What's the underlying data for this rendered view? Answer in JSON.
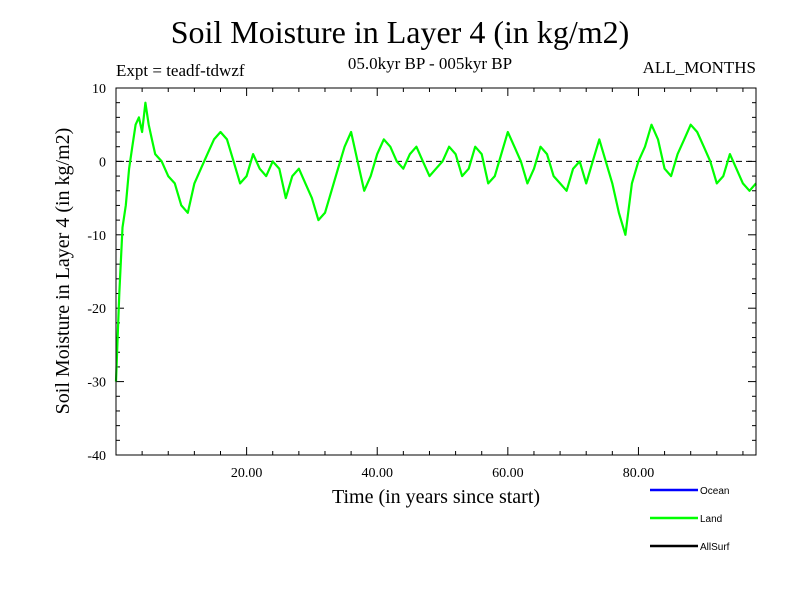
{
  "title": "Soil Moisture in Layer 4 (in kg/m2)",
  "subtitle": "05.0kyr BP - 005kyr BP",
  "experiment": "Expt = teadf-tdwzf",
  "period": "ALL_MONTHS",
  "chart_data": {
    "type": "line",
    "title": "Soil Moisture in Layer 4 (in kg/m2)",
    "xlabel": "Time (in years since start)",
    "ylabel": "Soil Moisture in Layer 4 (in kg/m2)",
    "xlim": [
      0,
      98
    ],
    "ylim": [
      -40,
      10
    ],
    "xticks": [
      20,
      40,
      60,
      80
    ],
    "xtick_labels": [
      "20.00",
      "40.00",
      "60.00",
      "80.00"
    ],
    "yticks": [
      -40,
      -30,
      -20,
      -10,
      0,
      10
    ],
    "ytick_labels": [
      "-40",
      "-30",
      "-20",
      "-10",
      "0",
      "10"
    ],
    "reference_line": {
      "y": 0,
      "style": "dashed"
    },
    "series": [
      {
        "name": "Land",
        "color": "#00ff00",
        "x": [
          0,
          0.5,
          1,
          1.5,
          2,
          2.5,
          3,
          3.5,
          4,
          4.5,
          5,
          5.5,
          6,
          7,
          8,
          9,
          10,
          11,
          12,
          13,
          14,
          15,
          16,
          17,
          18,
          19,
          20,
          21,
          22,
          23,
          24,
          25,
          26,
          27,
          28,
          29,
          30,
          31,
          32,
          33,
          34,
          35,
          36,
          37,
          38,
          39,
          40,
          41,
          42,
          43,
          44,
          45,
          46,
          47,
          48,
          49,
          50,
          51,
          52,
          53,
          54,
          55,
          56,
          57,
          58,
          59,
          60,
          61,
          62,
          63,
          64,
          65,
          66,
          67,
          68,
          69,
          70,
          71,
          72,
          73,
          74,
          75,
          76,
          77,
          78,
          79,
          80,
          81,
          82,
          83,
          84,
          85,
          86,
          87,
          88,
          89,
          90,
          91,
          92,
          93,
          94,
          95,
          96,
          97,
          98
        ],
        "values": [
          -30,
          -18,
          -9,
          -6,
          -1,
          2,
          5,
          6,
          4,
          8,
          5,
          3,
          1,
          0,
          -2,
          -3,
          -6,
          -7,
          -3,
          -1,
          1,
          3,
          4,
          3,
          0,
          -3,
          -2,
          1,
          -1,
          -2,
          0,
          -1,
          -5,
          -2,
          -1,
          -3,
          -5,
          -8,
          -7,
          -4,
          -1,
          2,
          4,
          0,
          -4,
          -2,
          1,
          3,
          2,
          0,
          -1,
          1,
          2,
          0,
          -2,
          -1,
          0,
          2,
          1,
          -2,
          -1,
          2,
          1,
          -3,
          -2,
          1,
          4,
          2,
          0,
          -3,
          -1,
          2,
          1,
          -2,
          -3,
          -4,
          -1,
          0,
          -3,
          0,
          3,
          0,
          -3,
          -7,
          -10,
          -3,
          0,
          2,
          5,
          3,
          -1,
          -2,
          1,
          3,
          5,
          4,
          2,
          0,
          -3,
          -2,
          1,
          -1,
          -3,
          -4,
          -3
        ]
      },
      {
        "name": "Ocean",
        "color": "#0000ff",
        "values": []
      },
      {
        "name": "AllSurf",
        "color": "#000000",
        "values": []
      }
    ]
  }
}
